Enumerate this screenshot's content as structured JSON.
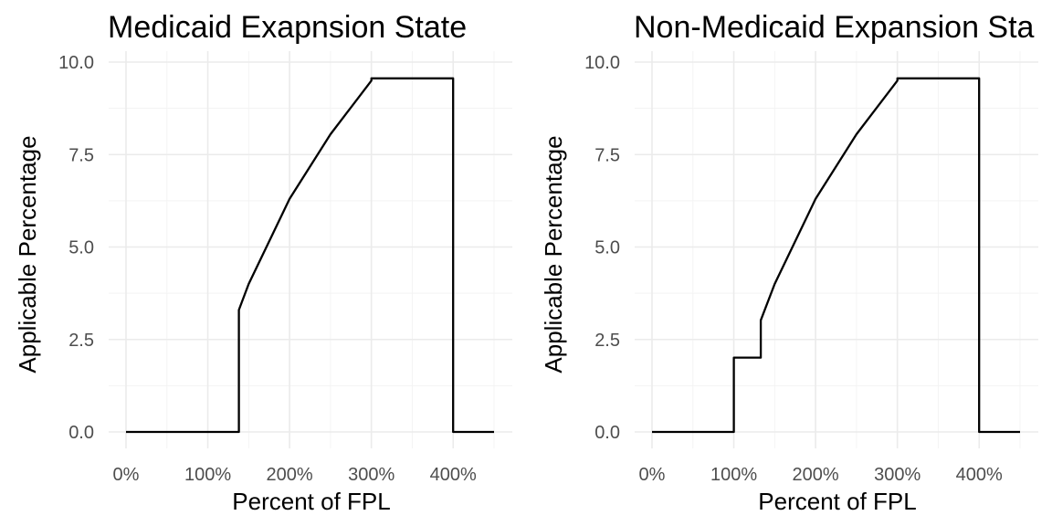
{
  "chart_data": [
    {
      "type": "line",
      "title": "Medicaid Exapnsion State",
      "xlabel": "Percent of FPL",
      "ylabel": "Applicable Percentage",
      "xlim": [
        0,
        450
      ],
      "ylim": [
        0,
        10
      ],
      "x_ticks": [
        0,
        100,
        200,
        300,
        400
      ],
      "x_tick_labels": [
        "0%",
        "100%",
        "200%",
        "300%",
        "400%"
      ],
      "y_ticks": [
        0,
        2.5,
        5,
        7.5,
        10
      ],
      "y_tick_labels": [
        "0.0",
        "2.5",
        "5.0",
        "7.5",
        "10.0"
      ],
      "grid": true,
      "series": [
        {
          "x": [
            0,
            138,
            138,
            150,
            200,
            250,
            300,
            300,
            400,
            400,
            450
          ],
          "y": [
            0,
            0,
            3.3,
            4.0,
            6.3,
            8.05,
            9.5,
            9.56,
            9.56,
            0,
            0
          ]
        }
      ]
    },
    {
      "type": "line",
      "title": "Non-Medicaid Expansion Sta",
      "xlabel": "Percent of FPL",
      "ylabel": "Applicable Percentage",
      "xlim": [
        0,
        450
      ],
      "ylim": [
        0,
        10
      ],
      "x_ticks": [
        0,
        100,
        200,
        300,
        400
      ],
      "x_tick_labels": [
        "0%",
        "100%",
        "200%",
        "300%",
        "400%"
      ],
      "y_ticks": [
        0,
        2.5,
        5,
        7.5,
        10
      ],
      "y_tick_labels": [
        "0.0",
        "2.5",
        "5.0",
        "7.5",
        "10.0"
      ],
      "grid": true,
      "series": [
        {
          "x": [
            0,
            100,
            100,
            133,
            133,
            150,
            200,
            250,
            300,
            300,
            400,
            400,
            450
          ],
          "y": [
            0,
            0,
            2.01,
            2.01,
            3.02,
            4.0,
            6.3,
            8.05,
            9.5,
            9.56,
            9.56,
            0,
            0
          ]
        }
      ]
    }
  ]
}
